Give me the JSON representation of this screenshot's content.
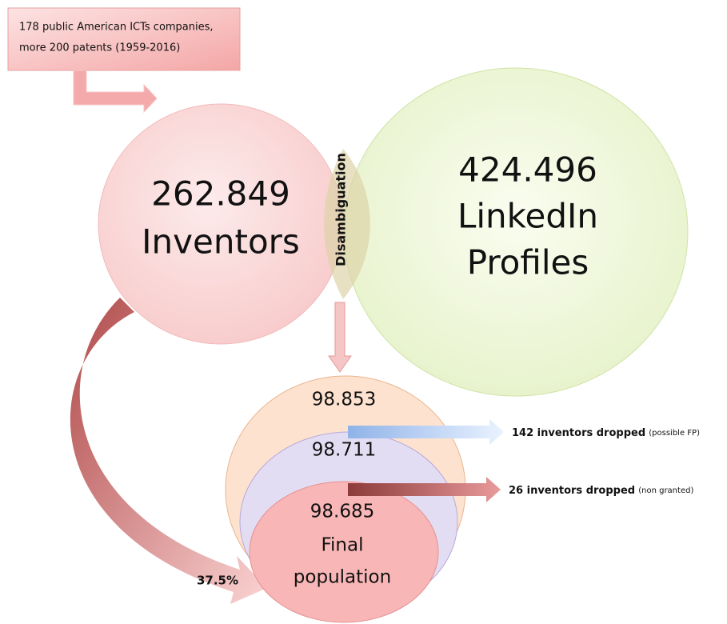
{
  "source_box": {
    "lines": [
      "178 public American ICTs companies,",
      "more 200 patents (1959-2016)"
    ]
  },
  "inventors": {
    "count": "262.849",
    "label": "Inventors"
  },
  "linkedin": {
    "count": "424.496",
    "lines": [
      "LinkedIn",
      "Profiles"
    ]
  },
  "overlap": {
    "label": "Disambiguation"
  },
  "funnel": {
    "levels": [
      "98.853",
      "98.711",
      "98.685"
    ],
    "final_lines": [
      "Final",
      "population"
    ]
  },
  "drops": [
    {
      "count_text": "142 inventors dropped",
      "note": "(possible FP)"
    },
    {
      "count_text": "26 inventors dropped",
      "note": "(non granted)"
    }
  ],
  "share": "37.5%"
}
